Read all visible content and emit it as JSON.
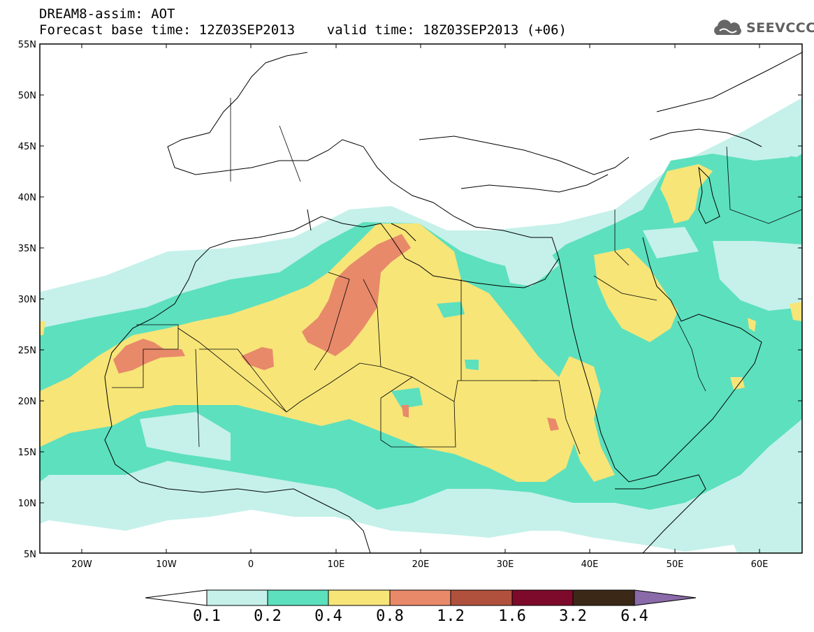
{
  "header": {
    "title_line1": "DREAM8-assim: AOT",
    "title_line2": "Forecast base time: 12Z03SEP2013    valid time: 18Z03SEP2013 (+06)",
    "logo_text": "SEEVCCC"
  },
  "map": {
    "variable": "AOT",
    "model": "DREAM8-assim",
    "lon_range": [
      -25,
      65
    ],
    "lat_range": [
      5,
      55
    ],
    "lat_ticks": [
      "55N",
      "50N",
      "45N",
      "40N",
      "35N",
      "30N",
      "25N",
      "20N",
      "15N",
      "10N",
      "5N"
    ],
    "lon_ticks": [
      "20W",
      "10W",
      "0",
      "10E",
      "20E",
      "30E",
      "40E",
      "50E",
      "60E"
    ]
  },
  "colorbar": {
    "levels": [
      "0.1",
      "0.2",
      "0.4",
      "0.8",
      "1.2",
      "1.6",
      "3.2",
      "6.4"
    ],
    "colors": {
      "lt0.1": "#ffffff",
      "0.1-0.2": "#c5f1ea",
      "0.2-0.4": "#5de0bd",
      "0.4-0.8": "#f7e578",
      "0.8-1.2": "#e8896a",
      "1.2-1.6": "#b0513e",
      "1.6-3.2": "#7d0a2a",
      "3.2-6.4": "#3c2817",
      "gt6.4": "#8a6aa8"
    }
  }
}
